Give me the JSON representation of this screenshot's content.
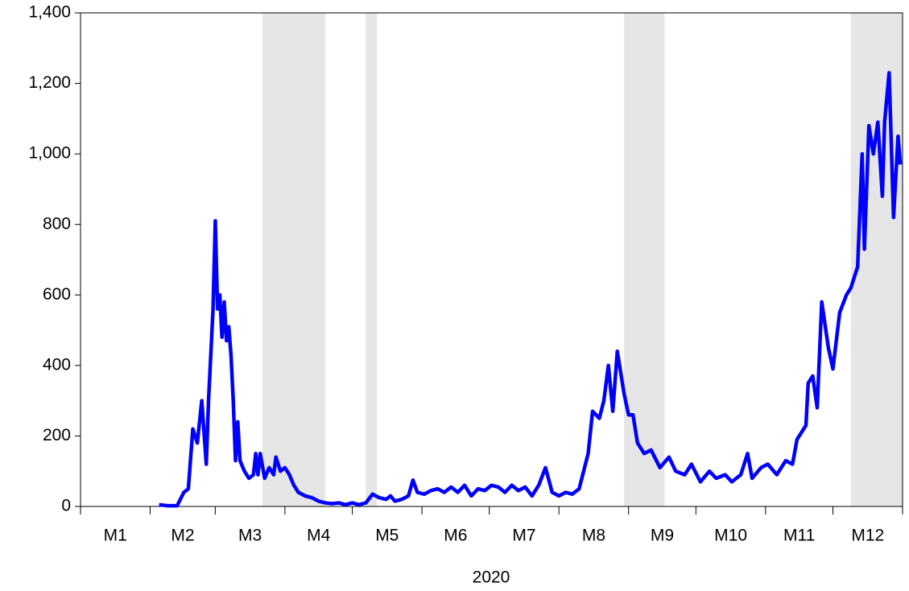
{
  "chart_data": {
    "type": "line",
    "xlabel": "2020",
    "x": [
      36,
      40,
      44,
      47,
      49,
      51,
      53,
      55,
      57,
      58,
      60,
      61,
      62,
      63,
      64,
      65,
      66,
      67,
      68,
      69,
      70,
      71,
      72,
      74,
      76,
      78,
      79,
      80,
      81,
      83,
      85,
      87,
      88,
      90,
      92,
      94,
      96,
      98,
      101,
      104,
      107,
      110,
      113,
      116,
      119,
      122,
      125,
      128,
      131,
      134,
      137,
      139,
      141,
      144,
      147,
      149,
      151,
      154,
      157,
      160,
      163,
      166,
      169,
      172,
      175,
      178,
      181,
      184,
      187,
      190,
      193,
      196,
      199,
      202,
      205,
      208,
      211,
      214,
      217,
      220,
      223,
      227,
      229,
      232,
      234,
      236,
      238,
      240,
      243,
      245,
      247,
      249,
      252,
      255,
      259,
      263,
      266,
      270,
      273,
      277,
      281,
      284,
      288,
      291,
      295,
      298,
      300,
      304,
      307,
      311,
      315,
      318,
      320,
      324,
      325,
      327,
      329,
      331,
      334,
      336,
      339,
      342,
      344,
      347,
      349,
      350,
      352,
      354,
      356,
      358,
      359,
      361,
      363,
      365,
      366
    ],
    "series": [
      {
        "color": "#0000ff",
        "values": [
          5,
          2,
          2,
          40,
          50,
          220,
          180,
          300,
          120,
          300,
          560,
          810,
          560,
          600,
          480,
          580,
          470,
          510,
          430,
          300,
          130,
          240,
          130,
          100,
          80,
          90,
          150,
          90,
          150,
          80,
          110,
          90,
          140,
          100,
          110,
          90,
          60,
          40,
          30,
          25,
          15,
          10,
          8,
          10,
          5,
          10,
          5,
          10,
          35,
          25,
          20,
          30,
          15,
          20,
          30,
          75,
          40,
          35,
          45,
          50,
          40,
          55,
          40,
          60,
          30,
          50,
          45,
          60,
          55,
          40,
          60,
          45,
          55,
          30,
          60,
          110,
          40,
          30,
          40,
          35,
          50,
          150,
          270,
          250,
          300,
          400,
          270,
          440,
          320,
          260,
          260,
          180,
          150,
          160,
          110,
          140,
          100,
          90,
          120,
          70,
          100,
          80,
          90,
          70,
          90,
          150,
          80,
          110,
          120,
          90,
          130,
          120,
          190,
          230,
          350,
          370,
          280,
          580,
          450,
          390,
          550,
          600,
          620,
          680,
          1000,
          730,
          1080,
          1000,
          1090,
          880,
          1090,
          1230,
          820,
          1050,
          970
        ]
      }
    ],
    "shaded_ranges": [
      [
        82,
        110
      ],
      [
        128,
        133
      ],
      [
        243,
        261
      ],
      [
        344,
        367
      ]
    ],
    "shade_color": "#e6e6e6",
    "xlim": [
      1,
      367
    ],
    "xticks": [
      {
        "value": 1,
        "label": "M1"
      },
      {
        "value": 32,
        "label": "M2"
      },
      {
        "value": 61,
        "label": "M3"
      },
      {
        "value": 92,
        "label": "M4"
      },
      {
        "value": 122,
        "label": "M5"
      },
      {
        "value": 153,
        "label": "M6"
      },
      {
        "value": 183,
        "label": "M7"
      },
      {
        "value": 214,
        "label": "M8"
      },
      {
        "value": 245,
        "label": "M9"
      },
      {
        "value": 275,
        "label": "M10"
      },
      {
        "value": 306,
        "label": "M11"
      },
      {
        "value": 336,
        "label": "M12"
      }
    ],
    "ylim": [
      0,
      1400
    ],
    "yticks": [
      0,
      200,
      400,
      600,
      800,
      {
        "value": 1000,
        "label": "1,000"
      },
      {
        "value": 1200,
        "label": "1,200"
      },
      {
        "value": 1400,
        "label": "1,400"
      }
    ],
    "grid": false
  }
}
